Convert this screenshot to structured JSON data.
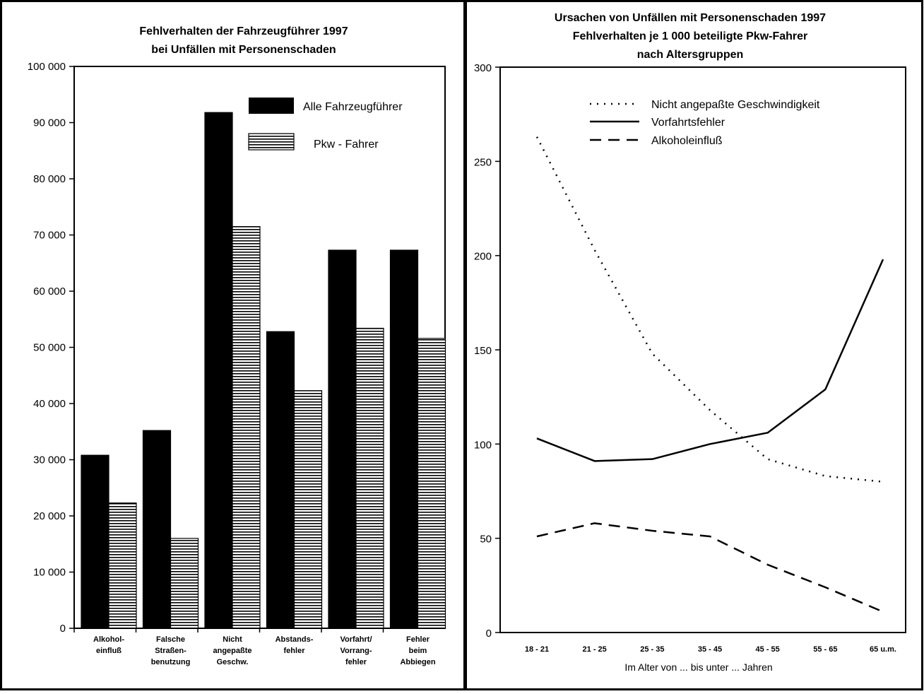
{
  "chart_data": [
    {
      "type": "bar",
      "title": [
        "Fehlverhalten der Fahrzeugführer 1997",
        "bei Unfällen mit Personenschaden"
      ],
      "categories": [
        [
          "Alkohol-",
          "einfluß"
        ],
        [
          "Falsche",
          "Straßen-",
          "benutzung"
        ],
        [
          "Nicht",
          "angepaßte",
          "Geschw."
        ],
        [
          "Abstands-",
          "fehler"
        ],
        [
          "Vorfahrt/",
          "Vorrang-",
          "fehler"
        ],
        [
          "Fehler",
          "beim",
          "Abbiegen"
        ]
      ],
      "series": [
        {
          "name": "Alle Fahrzeugführer",
          "color": "#000000",
          "pattern": "solid",
          "values": [
            30800,
            35200,
            91800,
            52800,
            67300,
            67300
          ]
        },
        {
          "name": "Pkw - Fahrer",
          "color": "#000000",
          "pattern": "horizontal-stripes",
          "values": [
            22300,
            16000,
            71500,
            42300,
            53400,
            51600
          ]
        }
      ],
      "ylim": [
        0,
        100000
      ],
      "yticks": [
        0,
        10000,
        20000,
        30000,
        40000,
        50000,
        60000,
        70000,
        80000,
        90000,
        100000
      ],
      "ytick_labels": [
        "0",
        "10 000",
        "20 000",
        "30 000",
        "40 000",
        "50 000",
        "60 000",
        "70 000",
        "80 000",
        "90 000",
        "100 000"
      ],
      "legend_position": "top-right",
      "grid": false
    },
    {
      "type": "line",
      "title": [
        "Ursachen von Unfällen mit Personenschaden 1997",
        "Fehlverhalten  je 1 000 beteiligte Pkw-Fahrer",
        "nach Altersgruppen"
      ],
      "categories": [
        "18 - 21",
        "21 - 25",
        "25 - 35",
        "35 - 45",
        "45 - 55",
        "55 - 65",
        "65 u.m."
      ],
      "xlabel": "Im Alter von ... bis unter ... Jahren",
      "series": [
        {
          "name": "Nicht angepaßte Geschwindigkeit",
          "style": "dotted",
          "values": [
            263,
            203,
            148,
            118,
            92,
            83,
            80
          ]
        },
        {
          "name": "Vorfahrtsfehler",
          "style": "solid",
          "values": [
            103,
            91,
            92,
            100,
            106,
            129,
            198
          ]
        },
        {
          "name": "Alkoholeinfluß",
          "style": "dashed",
          "values": [
            51,
            58,
            54,
            51,
            36,
            24,
            11
          ]
        }
      ],
      "ylim": [
        0,
        300
      ],
      "yticks": [
        0,
        50,
        100,
        150,
        200,
        250,
        300
      ],
      "ytick_labels": [
        "0",
        "50",
        "100",
        "150",
        "200",
        "250",
        "300"
      ],
      "legend_position": "top-right",
      "grid": false
    }
  ]
}
